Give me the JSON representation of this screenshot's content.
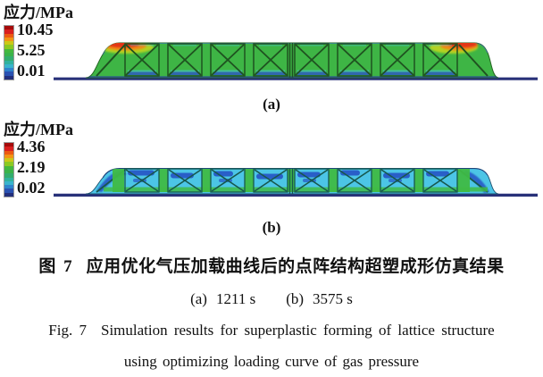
{
  "figure": {
    "legend_a": {
      "title": "应力/MPa",
      "max": "10.45",
      "mid": "5.25",
      "min": "0.01"
    },
    "legend_b": {
      "title": "应力/MPa",
      "max": "4.36",
      "mid": "2.19",
      "min": "0.02"
    },
    "label_a": "(a)",
    "label_b": "(b)",
    "caption": {
      "zh_prefix": "图 7",
      "zh_text": "应用优化气压加载曲线后的点阵结构超塑成形仿真结果",
      "sub_a_label": "(a)",
      "sub_a_value": "1211 s",
      "sub_b_label": "(b)",
      "sub_b_value": "3575 s",
      "en_prefix": "Fig. 7",
      "en_line1": "Simulation results for superplastic forming of lattice structure",
      "en_line2": "using optimizing loading curve of gas pressure"
    },
    "colors": {
      "colorbar_stops": [
        "#a50b0b",
        "#d91f1f",
        "#ec5a13",
        "#f29414",
        "#ccc818",
        "#8cc922",
        "#44b83e",
        "#3bb34a",
        "#33ad6e",
        "#31b29e",
        "#3ab4cc",
        "#2f84cc",
        "#2a52b2",
        "#232f7c"
      ],
      "body_a": "#3eb545",
      "body_b": "#4cc5e6",
      "truss_a": "#1f5220",
      "truss_b": "#17584c",
      "baseline": "#283179",
      "hot_red": "#e23414",
      "hot_orange": "#f08814",
      "hot_yellow": "#c8d81e",
      "patch_blue": "#2653c4",
      "patch_green": "#3fbb45",
      "smear_blue": "#2e55c8",
      "smear_cyan": "#49c3e0"
    }
  }
}
